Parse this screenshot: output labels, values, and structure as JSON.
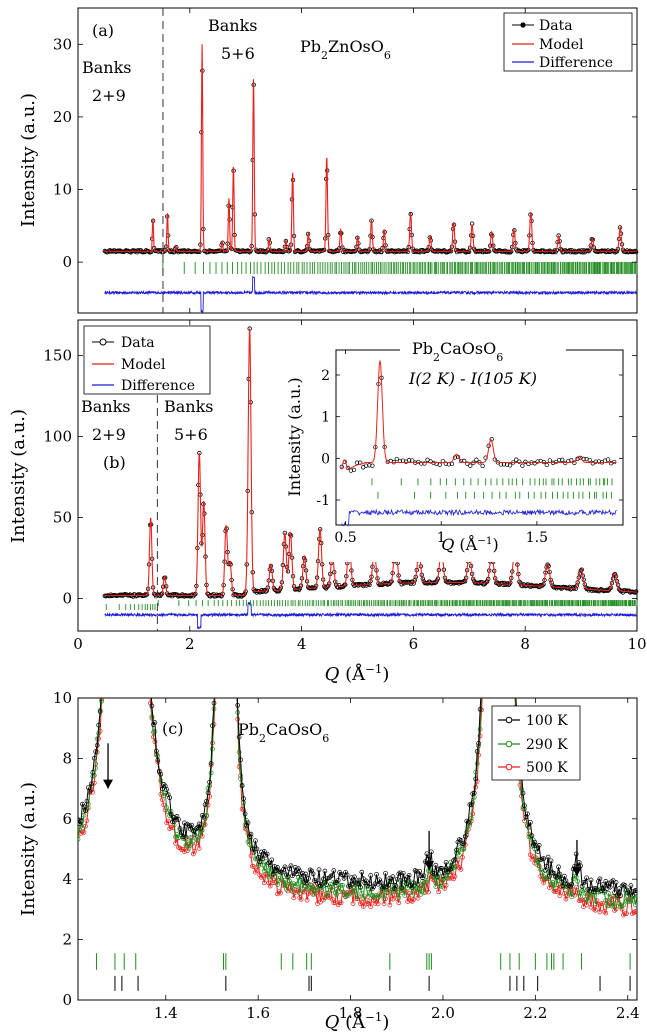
{
  "chart_data": [
    {
      "panel": "(a)",
      "type": "line",
      "compound": "Pb2ZnOsO6",
      "ylabel": "Intensity (a.u.)",
      "xlim": [
        0,
        10
      ],
      "ylim": [
        -7,
        35
      ],
      "yticks": [
        0,
        10,
        20,
        30
      ],
      "annotations": [
        {
          "text": "Banks",
          "x": 0.28,
          "y": 27.8
        },
        {
          "text": "2+9",
          "x": 0.45,
          "y": 23.7
        },
        {
          "text": "Banks",
          "x": 2.7,
          "y": 31.8
        },
        {
          "text": "5+6",
          "x": 2.6,
          "y": 28.0
        }
      ],
      "divider_x": 1.52,
      "legend": {
        "position": "top-right",
        "entries": [
          "Data",
          "Model",
          "Difference"
        ]
      },
      "peaks": [
        {
          "x": 1.34,
          "y": 6.0
        },
        {
          "x": 1.6,
          "y": 6.8
        },
        {
          "x": 1.75,
          "y": 2.2
        },
        {
          "x": 2.22,
          "y": 30.0
        },
        {
          "x": 2.58,
          "y": 2.8
        },
        {
          "x": 2.7,
          "y": 8.8
        },
        {
          "x": 2.78,
          "y": 13.3
        },
        {
          "x": 3.14,
          "y": 25.5
        },
        {
          "x": 3.42,
          "y": 3.2
        },
        {
          "x": 3.72,
          "y": 3.0
        },
        {
          "x": 3.84,
          "y": 12.3
        },
        {
          "x": 4.12,
          "y": 4.0
        },
        {
          "x": 4.45,
          "y": 14.5
        },
        {
          "x": 4.7,
          "y": 4.5
        },
        {
          "x": 5.0,
          "y": 3.5
        },
        {
          "x": 5.25,
          "y": 5.8
        },
        {
          "x": 5.48,
          "y": 4.4
        },
        {
          "x": 5.95,
          "y": 6.8
        },
        {
          "x": 6.3,
          "y": 3.6
        },
        {
          "x": 6.72,
          "y": 5.5
        },
        {
          "x": 7.05,
          "y": 5.2
        },
        {
          "x": 7.4,
          "y": 4.2
        },
        {
          "x": 7.8,
          "y": 4.5
        },
        {
          "x": 8.1,
          "y": 6.8
        },
        {
          "x": 8.6,
          "y": 3.6
        },
        {
          "x": 9.2,
          "y": 3.2
        },
        {
          "x": 9.7,
          "y": 4.8
        }
      ],
      "baseline": 1.5,
      "ticks_y": -0.8,
      "difference_offset": -4.2
    },
    {
      "panel": "(b)",
      "type": "line",
      "compound": "Pb2CaOsO6",
      "xlabel": "Q (Å⁻¹)",
      "ylabel": "Intensity (a.u.)",
      "xlim": [
        0,
        10
      ],
      "ylim": [
        -20,
        172
      ],
      "xticks": [
        0,
        2,
        4,
        6,
        8,
        10
      ],
      "yticks": [
        0,
        50,
        100,
        150
      ],
      "annotations": [
        {
          "text": "Banks",
          "x": 0.1,
          "y": 100
        },
        {
          "text": "2+9",
          "x": 0.3,
          "y": 82
        },
        {
          "text": "(b)",
          "x": 0.55,
          "y": 62
        },
        {
          "text": "Banks",
          "x": 1.52,
          "y": 100
        },
        {
          "text": "5+6",
          "x": 1.65,
          "y": 82
        }
      ],
      "divider_x": 1.42,
      "legend": {
        "position": "top-left",
        "entries": [
          "Data",
          "Model",
          "Difference"
        ]
      },
      "peaks": [
        {
          "x": 1.3,
          "y": 50
        },
        {
          "x": 1.55,
          "y": 14
        },
        {
          "x": 2.17,
          "y": 90
        },
        {
          "x": 2.25,
          "y": 60
        },
        {
          "x": 2.65,
          "y": 45
        },
        {
          "x": 2.72,
          "y": 22
        },
        {
          "x": 3.07,
          "y": 165
        },
        {
          "x": 3.45,
          "y": 18
        },
        {
          "x": 3.7,
          "y": 37
        },
        {
          "x": 3.8,
          "y": 37
        },
        {
          "x": 4.05,
          "y": 22
        },
        {
          "x": 4.33,
          "y": 38
        },
        {
          "x": 4.55,
          "y": 22
        },
        {
          "x": 4.85,
          "y": 29
        },
        {
          "x": 5.3,
          "y": 23
        },
        {
          "x": 5.68,
          "y": 28
        },
        {
          "x": 6.1,
          "y": 20
        },
        {
          "x": 6.5,
          "y": 22
        },
        {
          "x": 7.0,
          "y": 19
        },
        {
          "x": 7.4,
          "y": 20
        },
        {
          "x": 7.82,
          "y": 26
        },
        {
          "x": 8.4,
          "y": 16
        },
        {
          "x": 9.0,
          "y": 14
        },
        {
          "x": 9.6,
          "y": 13
        }
      ],
      "baseline": 2,
      "ticks_y": -4,
      "difference_offset": -10,
      "inset": {
        "title": "Pb2CaOsO6",
        "subtitle": "I(2 K) - I(105 K)",
        "xlabel": "Q (Å⁻¹)",
        "ylabel": "Intensity (a.u.)",
        "xlim": [
          0.45,
          1.95
        ],
        "ylim": [
          -1.6,
          2.6
        ],
        "xticks": [
          0.5,
          1,
          1.5
        ],
        "yticks": [
          -1,
          0,
          1,
          2
        ],
        "peaks": [
          {
            "x": 0.49,
            "y": 0.3
          },
          {
            "x": 0.68,
            "y": 2.35
          },
          {
            "x": 1.08,
            "y": 0.1
          },
          {
            "x": 1.26,
            "y": 0.45
          },
          {
            "x": 1.72,
            "y": 0.05
          }
        ]
      }
    },
    {
      "panel": "(c)",
      "type": "line",
      "compound": "Pb2CaOsO6",
      "xlabel": "Q (Å⁻¹)",
      "ylabel": "Intensity (a.u.)",
      "xlim": [
        1.21,
        2.42
      ],
      "ylim": [
        0,
        10
      ],
      "xticks": [
        1.4,
        1.6,
        1.8,
        2.0,
        2.2,
        2.4
      ],
      "yticks": [
        0,
        2,
        4,
        6,
        8,
        10
      ],
      "legend": {
        "position": "top-right"
      },
      "series": [
        {
          "name": "100 K",
          "color": "#000000",
          "offset": 0.55
        },
        {
          "name": "290 K",
          "color": "#1f8c1f",
          "offset": 0.25
        },
        {
          "name": "500 K",
          "color": "#e8211c",
          "offset": 0.0
        }
      ],
      "arrows_x": [
        1.275,
        1.97,
        2.29
      ],
      "tick_rows": {
        "green": [
          1.25,
          1.29,
          1.31,
          1.335,
          1.525,
          1.53,
          1.65,
          1.675,
          1.705,
          1.715,
          1.885,
          1.965,
          1.97,
          1.975,
          2.125,
          2.145,
          2.165,
          2.2,
          2.225,
          2.235,
          2.24,
          2.26,
          2.3,
          2.405
        ],
        "black": [
          1.29,
          1.305,
          1.34,
          1.53,
          1.71,
          1.715,
          1.885,
          1.97,
          2.145,
          2.16,
          2.175,
          2.205,
          2.34,
          2.405
        ]
      }
    }
  ],
  "panel_labels": {
    "a": "(a)",
    "b": "(b)",
    "c": "(c)"
  },
  "compound_a": {
    "pre": "Pb",
    "sub1": "2",
    "mid": "ZnOsO",
    "sub2": "6"
  },
  "compound_b": {
    "pre": "Pb",
    "sub1": "2",
    "mid": "CaOsO",
    "sub2": "6"
  },
  "compound_c": {
    "pre": "Pb",
    "sub1": "2",
    "mid": "CaOsO",
    "sub2": "6"
  },
  "inset_formula": "I(2 K) - I(105 K)",
  "banks_a1": "Banks",
  "banks_a1b": "2+9",
  "banks_a2": "Banks",
  "banks_a2b": "5+6",
  "banks_b1": "Banks",
  "banks_b1b": "2+9",
  "banks_b2": "Banks",
  "banks_b2b": "5+6",
  "legend_ab": [
    "Data",
    "Model",
    "Difference"
  ],
  "legend_c": [
    "100 K",
    "290 K",
    "500 K"
  ],
  "colors": {
    "data": "#000000",
    "model": "#e8211c",
    "difference": "#1c1cd6",
    "ticks": "#1f8c1f",
    "t290": "#1f8c1f"
  }
}
